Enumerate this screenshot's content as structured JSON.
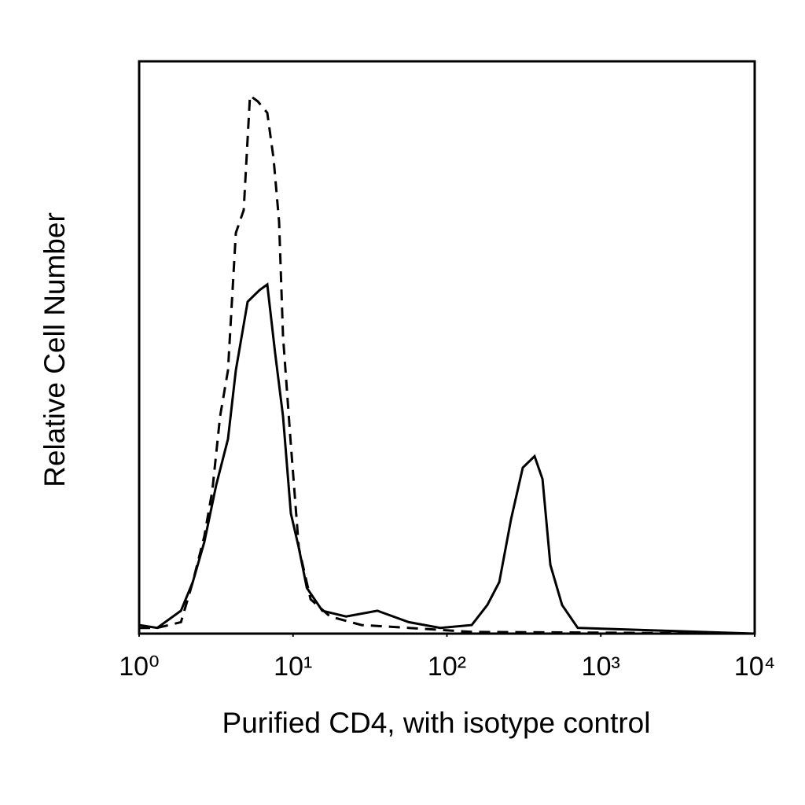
{
  "chart_data": {
    "type": "line",
    "x_label": "Purified CD4, with isotype control",
    "y_label": "Relative Cell Number",
    "xscale": "log",
    "xlim": [
      1,
      10000
    ],
    "ylim": [
      0,
      100
    ],
    "xticks": [
      {
        "value": 1,
        "label": "10⁰"
      },
      {
        "value": 10,
        "label": "10¹"
      },
      {
        "value": 100,
        "label": "10²"
      },
      {
        "value": 1000,
        "label": "10³"
      },
      {
        "value": 10000,
        "label": "10⁴"
      }
    ],
    "series": [
      {
        "color": "#000000",
        "line_style": "dashed",
        "x": [
          1,
          1.31,
          1.87,
          2.23,
          2.65,
          2.99,
          3.36,
          3.78,
          4.25,
          4.78,
          5.25,
          5.91,
          6.8,
          7.47,
          8.12,
          8.61,
          9.68,
          10.9,
          13.0,
          17.4,
          27.9,
          56.5,
          145,
          10000
        ],
        "values": [
          1,
          1,
          2,
          9,
          17,
          25,
          38,
          46,
          70,
          74,
          94,
          93,
          91,
          83,
          72,
          52,
          33,
          15,
          6,
          3,
          1.5,
          1,
          0.3,
          0
        ]
      },
      {
        "color": "#000000",
        "line_style": "solid",
        "x": [
          1,
          1.31,
          1.87,
          2.23,
          2.65,
          3.17,
          3.78,
          4.25,
          5.07,
          6.05,
          6.8,
          7.65,
          8.61,
          9.68,
          10.9,
          12.3,
          15.5,
          22.1,
          35.3,
          56.5,
          90.5,
          145,
          183,
          219,
          261,
          311,
          371,
          418,
          470,
          560,
          708,
          10000
        ],
        "values": [
          1.5,
          1,
          4,
          9,
          16,
          26,
          34,
          46,
          58,
          60,
          61,
          49,
          38,
          21,
          15,
          8,
          4,
          3,
          4,
          2,
          1,
          1.5,
          5,
          9,
          20,
          29,
          31,
          27,
          12,
          5,
          1,
          0
        ]
      }
    ]
  }
}
